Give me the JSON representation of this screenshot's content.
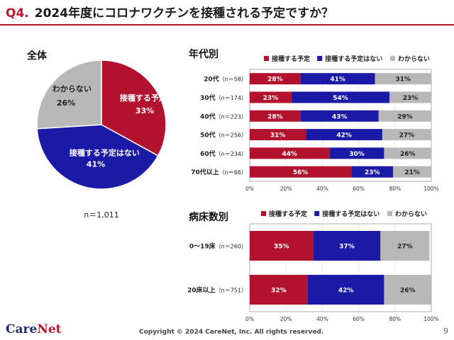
{
  "header": {
    "qnum": "Q4.",
    "qtext": "2024年度にコロナワクチンを接種される予定ですか？"
  },
  "footer": {
    "logo_main": "Care",
    "logo_accent": "Net",
    "copyright": "Copyright © 2024 CareNet, Inc. All rights reserved.",
    "page": "9"
  },
  "colors": {
    "yes": "#b3122f",
    "no": "#1a1aa6",
    "unknown": "#b8b8b8"
  },
  "chart_data": [
    {
      "type": "pie",
      "title": "全体",
      "note": "n＝1,011",
      "slices": [
        {
          "label": "接種する予定",
          "value": 33
        },
        {
          "label": "接種する予定はない",
          "value": 41
        },
        {
          "label": "わからない",
          "value": 26
        }
      ]
    },
    {
      "type": "bar",
      "stacked": true,
      "orientation": "horizontal",
      "title": "年代別",
      "legend": [
        "接種する予定",
        "接種する予定はない",
        "わからない"
      ],
      "categories": [
        "20代",
        "30代",
        "40代",
        "50代",
        "60代",
        "70代以上"
      ],
      "category_n": [
        "（n＝58）",
        "（n＝174）",
        "（n＝223）",
        "（n＝256）",
        "（n＝234）",
        "（n＝66）"
      ],
      "series": [
        {
          "name": "接種する予定",
          "values": [
            28,
            23,
            28,
            31,
            44,
            56
          ]
        },
        {
          "name": "接種する予定はない",
          "values": [
            41,
            54,
            43,
            42,
            30,
            23
          ]
        },
        {
          "name": "わからない",
          "values": [
            31,
            23,
            29,
            27,
            26,
            21
          ]
        }
      ],
      "xlim": [
        0,
        100
      ],
      "ticks": [
        "0%",
        "20%",
        "40%",
        "60%",
        "80%",
        "100%"
      ]
    },
    {
      "type": "bar",
      "stacked": true,
      "orientation": "horizontal",
      "title": "病床数別",
      "legend": [
        "接種する予定",
        "接種する予定はない",
        "わからない"
      ],
      "categories": [
        "0～19床",
        "20床以上"
      ],
      "category_n": [
        "（n＝260）",
        "（n＝751）"
      ],
      "series": [
        {
          "name": "接種する予定",
          "values": [
            35,
            32
          ]
        },
        {
          "name": "接種する予定はない",
          "values": [
            37,
            42
          ]
        },
        {
          "name": "わからない",
          "values": [
            27,
            26
          ]
        }
      ],
      "xlim": [
        0,
        100
      ],
      "ticks": [
        "0%",
        "20%",
        "40%",
        "60%",
        "80%",
        "100%"
      ]
    }
  ]
}
